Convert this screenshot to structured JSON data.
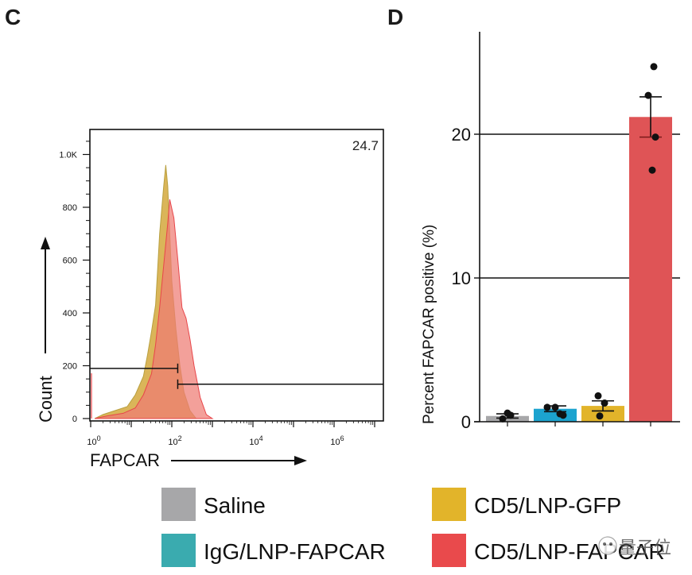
{
  "panels": {
    "c_label": "C",
    "d_label": "D"
  },
  "chart_data": [
    {
      "type": "area",
      "panel": "C",
      "title": "",
      "xlabel": "FAPCAR",
      "ylabel": "Count",
      "x_scale": "log10",
      "xlim": [
        1,
        10000000
      ],
      "ylim": [
        0,
        1100
      ],
      "x_ticks": [
        {
          "value": 1,
          "base": "10",
          "exp": "0"
        },
        {
          "value": 100,
          "base": "10",
          "exp": "2"
        },
        {
          "value": 10000,
          "base": "10",
          "exp": "4"
        },
        {
          "value": 1000000,
          "base": "10",
          "exp": "6"
        }
      ],
      "y_ticks": [
        {
          "value": 0,
          "label": "0"
        },
        {
          "value": 200,
          "label": "200"
        },
        {
          "value": 400,
          "label": "400"
        },
        {
          "value": 600,
          "label": "600"
        },
        {
          "value": 800,
          "label": "800"
        },
        {
          "value": 1000,
          "label": "1.0K"
        }
      ],
      "gate": {
        "boundary_x": 140,
        "positive_percent_label": "24.7",
        "negative_gate_y": 190,
        "positive_gate_y": 130
      },
      "series": [
        {
          "name": "CD5/LNP-GFP",
          "color": "#d4a83c",
          "points_log10x_count": [
            [
              0.1,
              0
            ],
            [
              0.3,
              15
            ],
            [
              0.6,
              30
            ],
            [
              0.9,
              45
            ],
            [
              1.1,
              90
            ],
            [
              1.3,
              160
            ],
            [
              1.4,
              240
            ],
            [
              1.5,
              330
            ],
            [
              1.6,
              430
            ],
            [
              1.65,
              560
            ],
            [
              1.7,
              700
            ],
            [
              1.8,
              880
            ],
            [
              1.85,
              960
            ],
            [
              1.9,
              880
            ],
            [
              1.95,
              700
            ],
            [
              2.0,
              520
            ],
            [
              2.1,
              340
            ],
            [
              2.2,
              200
            ],
            [
              2.3,
              100
            ],
            [
              2.45,
              30
            ],
            [
              2.6,
              0
            ]
          ]
        },
        {
          "name": "CD5/LNP-FAPCAR",
          "color": "#ee7b73",
          "points_log10x_count": [
            [
              0.1,
              0
            ],
            [
              0.4,
              10
            ],
            [
              0.8,
              20
            ],
            [
              1.1,
              40
            ],
            [
              1.3,
              90
            ],
            [
              1.5,
              170
            ],
            [
              1.6,
              280
            ],
            [
              1.7,
              420
            ],
            [
              1.8,
              580
            ],
            [
              1.9,
              740
            ],
            [
              1.95,
              830
            ],
            [
              2.05,
              760
            ],
            [
              2.15,
              600
            ],
            [
              2.25,
              420
            ],
            [
              2.35,
              380
            ],
            [
              2.45,
              300
            ],
            [
              2.55,
              200
            ],
            [
              2.7,
              80
            ],
            [
              2.85,
              15
            ],
            [
              3.0,
              0
            ]
          ]
        }
      ]
    },
    {
      "type": "bar",
      "panel": "D",
      "title": "",
      "xlabel": "",
      "ylabel": "Percent FAPCAR positive (%)",
      "ylim": [
        0,
        27
      ],
      "y_ticks": [
        0,
        10,
        20
      ],
      "grid": "horizontal at major ticks",
      "categories": [
        "Saline",
        "IgG/LNP-FAPCAR",
        "CD5/LNP-GFP",
        "CD5/LNP-FAPCAR"
      ],
      "values": [
        0.4,
        0.9,
        1.1,
        21.2
      ],
      "errors_sem": [
        0.15,
        0.2,
        0.35,
        1.4
      ],
      "points": [
        [
          0.2,
          0.45,
          0.6
        ],
        [
          1.0,
          0.55,
          1.0,
          0.45
        ],
        [
          1.8,
          1.3,
          0.4
        ],
        [
          24.7,
          22.7,
          19.8,
          17.5
        ]
      ],
      "colors": [
        "#a7a7a9",
        "#1ca3cf",
        "#e2b42a",
        "#df5456"
      ]
    }
  ],
  "legend": {
    "items": [
      {
        "label": "Saline",
        "color": "#a7a7a9"
      },
      {
        "label": "CD5/LNP-GFP",
        "color": "#e2b42a"
      },
      {
        "label": "IgG/LNP-FAPCAR",
        "color": "#3aabaf"
      },
      {
        "label": "CD5/LNP-FAPCAR",
        "color": "#e94a4c"
      }
    ]
  },
  "watermark": {
    "text": "量子位"
  }
}
